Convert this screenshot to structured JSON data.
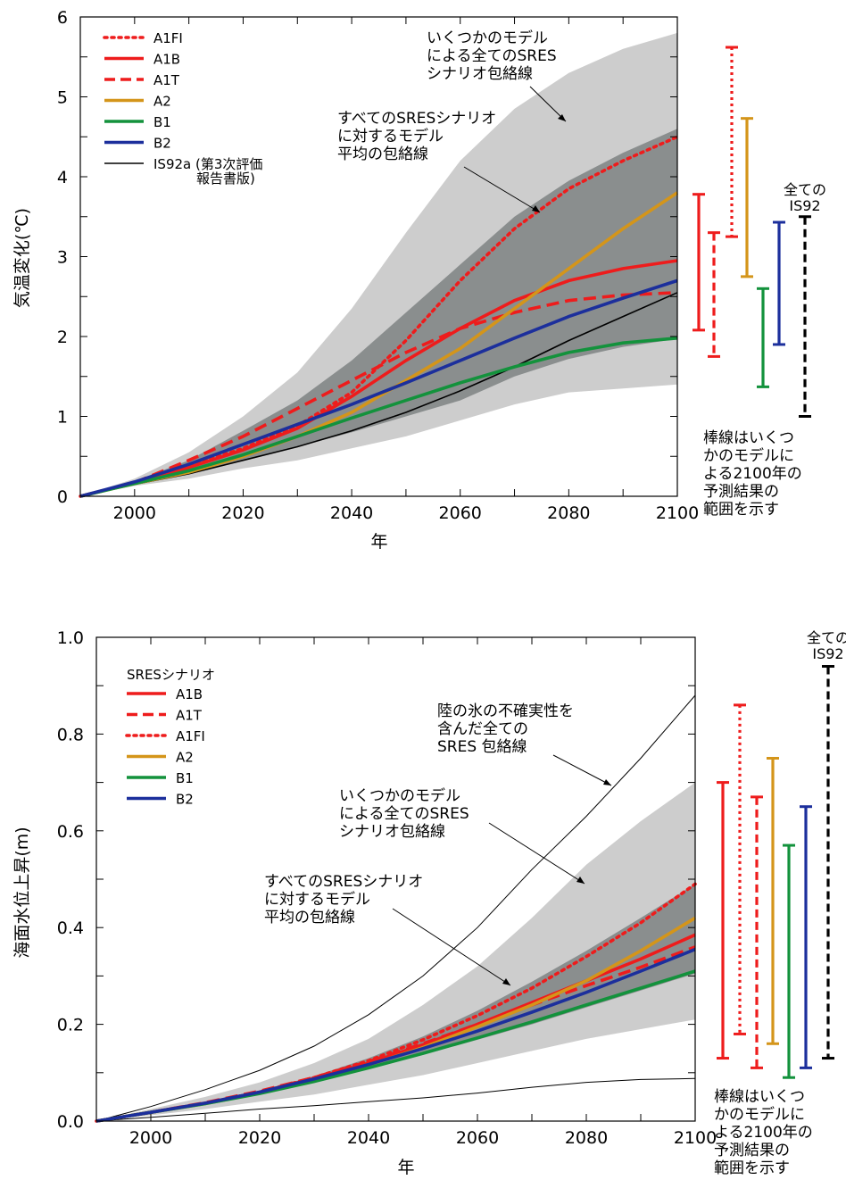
{
  "chart_data": [
    {
      "type": "line",
      "xlabel": "年",
      "ylabel": "気温変化(℃)",
      "xlim": [
        1990,
        2100
      ],
      "ylim": [
        0,
        6
      ],
      "x_ticks": [
        "2000",
        "2020",
        "2040",
        "2060",
        "2080",
        "2100"
      ],
      "y_ticks": [
        "0",
        "1",
        "2",
        "3",
        "4",
        "5",
        "6"
      ],
      "legend": "top-left",
      "series": [
        {
          "name": "A1FI",
          "style": "dotted",
          "color": "#ee1c1c",
          "x": [
            1990,
            2000,
            2010,
            2020,
            2030,
            2040,
            2050,
            2060,
            2070,
            2080,
            2090,
            2100
          ],
          "y": [
            0,
            0.17,
            0.38,
            0.6,
            0.88,
            1.3,
            1.95,
            2.7,
            3.35,
            3.85,
            4.2,
            4.5
          ]
        },
        {
          "name": "A1B",
          "style": "solid",
          "color": "#ee1c1c",
          "x": [
            1990,
            2000,
            2010,
            2020,
            2030,
            2040,
            2050,
            2060,
            2070,
            2080,
            2090,
            2100
          ],
          "y": [
            0,
            0.17,
            0.36,
            0.58,
            0.85,
            1.25,
            1.7,
            2.1,
            2.45,
            2.7,
            2.85,
            2.95
          ]
        },
        {
          "name": "A1T",
          "style": "dashed",
          "color": "#ee1c1c",
          "x": [
            1990,
            2000,
            2010,
            2020,
            2030,
            2040,
            2050,
            2060,
            2070,
            2080,
            2090,
            2100
          ],
          "y": [
            0,
            0.17,
            0.45,
            0.75,
            1.1,
            1.45,
            1.8,
            2.1,
            2.3,
            2.45,
            2.52,
            2.55
          ]
        },
        {
          "name": "A2",
          "style": "solid",
          "color": "#d4951a",
          "x": [
            1990,
            2000,
            2010,
            2020,
            2030,
            2040,
            2050,
            2060,
            2070,
            2080,
            2090,
            2100
          ],
          "y": [
            0,
            0.16,
            0.3,
            0.5,
            0.75,
            1.05,
            1.45,
            1.85,
            2.35,
            2.85,
            3.35,
            3.8
          ]
        },
        {
          "name": "B1",
          "style": "solid",
          "color": "#13923c",
          "x": [
            1990,
            2000,
            2010,
            2020,
            2030,
            2040,
            2050,
            2060,
            2070,
            2080,
            2090,
            2100
          ],
          "y": [
            0,
            0.16,
            0.32,
            0.52,
            0.75,
            0.98,
            1.2,
            1.42,
            1.62,
            1.8,
            1.92,
            1.98
          ]
        },
        {
          "name": "B2",
          "style": "solid",
          "color": "#1c2f9c",
          "x": [
            1990,
            2000,
            2010,
            2020,
            2030,
            2040,
            2050,
            2060,
            2070,
            2080,
            2090,
            2100
          ],
          "y": [
            0,
            0.18,
            0.4,
            0.65,
            0.9,
            1.15,
            1.42,
            1.7,
            1.98,
            2.25,
            2.48,
            2.7
          ]
        },
        {
          "name": "IS92a (第3次評価報告書版)",
          "style": "thin",
          "color": "#000000",
          "x": [
            1990,
            2000,
            2010,
            2020,
            2030,
            2040,
            2050,
            2060,
            2070,
            2080,
            2090,
            2100
          ],
          "y": [
            0,
            0.15,
            0.28,
            0.45,
            0.62,
            0.82,
            1.05,
            1.32,
            1.62,
            1.95,
            2.25,
            2.55
          ]
        }
      ],
      "envelopes": [
        {
          "label": "いくつかのモデルによる全てのSRESシナリオ包絡線",
          "color": "#cdcdcd",
          "x": [
            1990,
            2000,
            2010,
            2020,
            2030,
            2040,
            2050,
            2060,
            2070,
            2080,
            2090,
            2100
          ],
          "upper": [
            0,
            0.22,
            0.55,
            1.0,
            1.55,
            2.35,
            3.3,
            4.2,
            4.85,
            5.3,
            5.6,
            5.8
          ],
          "lower": [
            0,
            0.13,
            0.22,
            0.35,
            0.45,
            0.6,
            0.75,
            0.95,
            1.15,
            1.3,
            1.35,
            1.4
          ]
        },
        {
          "label": "すべてのSRESシナリオに対するモデル平均の包絡線",
          "color": "#8a8e8e",
          "x": [
            1990,
            2000,
            2010,
            2020,
            2030,
            2040,
            2050,
            2060,
            2070,
            2080,
            2090,
            2100
          ],
          "upper": [
            0,
            0.19,
            0.45,
            0.82,
            1.2,
            1.7,
            2.3,
            2.9,
            3.5,
            3.95,
            4.3,
            4.6
          ],
          "lower": [
            0,
            0.15,
            0.28,
            0.45,
            0.62,
            0.8,
            1.0,
            1.2,
            1.5,
            1.72,
            1.87,
            1.97
          ]
        }
      ],
      "bars": [
        {
          "name": "A1B",
          "style": "solid",
          "color": "#ee1c1c",
          "low": 2.08,
          "high": 3.78
        },
        {
          "name": "A1T",
          "style": "dashed",
          "color": "#ee1c1c",
          "low": 1.75,
          "high": 3.3
        },
        {
          "name": "A1FI",
          "style": "dotted",
          "color": "#ee1c1c",
          "low": 3.25,
          "high": 5.62
        },
        {
          "name": "A2",
          "style": "solid",
          "color": "#d4951a",
          "low": 2.75,
          "high": 4.73
        },
        {
          "name": "B1",
          "style": "solid",
          "color": "#13923c",
          "low": 1.37,
          "high": 2.6
        },
        {
          "name": "B2",
          "style": "solid",
          "color": "#1c2f9c",
          "low": 1.9,
          "high": 3.43
        },
        {
          "name": "全てのIS92",
          "style": "dashed",
          "color": "#000000",
          "low": 1.0,
          "high": 3.5
        }
      ],
      "annotations": {
        "envelope_all_lines": [
          "いくつかのモデル",
          "による全てのSRES",
          "シナリオ包絡線"
        ],
        "envelope_mean_lines": [
          "すべてのSRESシナリオ",
          "に対するモデル",
          "平均の包絡線"
        ],
        "all_is92_lines": [
          "全ての",
          "IS92"
        ],
        "bar_note_lines": [
          "棒線はいくつ",
          "かのモデルに",
          "よる2100年の",
          "予測結果の",
          "範囲を示す"
        ],
        "is92a_note": "報告書版)"
      }
    },
    {
      "type": "line",
      "xlabel": "年",
      "ylabel": "海面水位上昇(m)",
      "xlim": [
        1990,
        2100
      ],
      "ylim": [
        0,
        1.0
      ],
      "x_ticks": [
        "2000",
        "2020",
        "2040",
        "2060",
        "2080",
        "2100"
      ],
      "y_ticks": [
        "0.0",
        "0.2",
        "0.4",
        "0.6",
        "0.8",
        "1.0"
      ],
      "legend_title": "SRESシナリオ",
      "legend": "top-left",
      "series": [
        {
          "name": "A1B",
          "style": "solid",
          "color": "#ee1c1c",
          "x": [
            1990,
            2000,
            2010,
            2020,
            2030,
            2040,
            2050,
            2060,
            2070,
            2080,
            2090,
            2100
          ],
          "y": [
            0,
            0.018,
            0.037,
            0.06,
            0.088,
            0.12,
            0.158,
            0.2,
            0.245,
            0.29,
            0.335,
            0.385
          ]
        },
        {
          "name": "A1T",
          "style": "dashed",
          "color": "#ee1c1c",
          "x": [
            1990,
            2000,
            2010,
            2020,
            2030,
            2040,
            2050,
            2060,
            2070,
            2080,
            2090,
            2100
          ],
          "y": [
            0,
            0.018,
            0.038,
            0.062,
            0.09,
            0.123,
            0.16,
            0.2,
            0.24,
            0.28,
            0.318,
            0.36
          ]
        },
        {
          "name": "A1FI",
          "style": "dotted",
          "color": "#ee1c1c",
          "x": [
            1990,
            2000,
            2010,
            2020,
            2030,
            2040,
            2050,
            2060,
            2070,
            2080,
            2090,
            2100
          ],
          "y": [
            0,
            0.018,
            0.037,
            0.06,
            0.09,
            0.125,
            0.168,
            0.218,
            0.275,
            0.34,
            0.41,
            0.49
          ]
        },
        {
          "name": "A2",
          "style": "solid",
          "color": "#d4951a",
          "x": [
            1990,
            2000,
            2010,
            2020,
            2030,
            2040,
            2050,
            2060,
            2070,
            2080,
            2090,
            2100
          ],
          "y": [
            0,
            0.018,
            0.036,
            0.058,
            0.085,
            0.116,
            0.152,
            0.195,
            0.24,
            0.29,
            0.352,
            0.42
          ]
        },
        {
          "name": "B1",
          "style": "solid",
          "color": "#13923c",
          "x": [
            1990,
            2000,
            2010,
            2020,
            2030,
            2040,
            2050,
            2060,
            2070,
            2080,
            2090,
            2100
          ],
          "y": [
            0,
            0.018,
            0.036,
            0.057,
            0.082,
            0.11,
            0.14,
            0.172,
            0.205,
            0.24,
            0.275,
            0.31
          ]
        },
        {
          "name": "B2",
          "style": "solid",
          "color": "#1c2f9c",
          "x": [
            1990,
            2000,
            2010,
            2020,
            2030,
            2040,
            2050,
            2060,
            2070,
            2080,
            2090,
            2100
          ],
          "y": [
            0,
            0.018,
            0.037,
            0.06,
            0.087,
            0.117,
            0.15,
            0.186,
            0.225,
            0.266,
            0.31,
            0.355
          ]
        }
      ],
      "envelopes": [
        {
          "label": "いくつかのモデルによる全てのSRESシナリオ包絡線",
          "color": "#cdcdcd",
          "x": [
            1990,
            2000,
            2010,
            2020,
            2030,
            2040,
            2050,
            2060,
            2070,
            2080,
            2090,
            2100
          ],
          "upper": [
            0,
            0.025,
            0.05,
            0.08,
            0.12,
            0.17,
            0.24,
            0.32,
            0.42,
            0.53,
            0.62,
            0.7
          ],
          "lower": [
            0,
            0.012,
            0.025,
            0.04,
            0.055,
            0.075,
            0.095,
            0.12,
            0.145,
            0.17,
            0.19,
            0.21
          ]
        },
        {
          "label": "すべてのSRESシナリオに対するモデル平均の包絡線",
          "color": "#8a8e8e",
          "x": [
            1990,
            2000,
            2010,
            2020,
            2030,
            2040,
            2050,
            2060,
            2070,
            2080,
            2090,
            2100
          ],
          "upper": [
            0,
            0.019,
            0.039,
            0.063,
            0.093,
            0.13,
            0.175,
            0.228,
            0.288,
            0.352,
            0.42,
            0.49
          ],
          "lower": [
            0,
            0.017,
            0.035,
            0.056,
            0.08,
            0.107,
            0.137,
            0.168,
            0.2,
            0.235,
            0.27,
            0.305
          ]
        }
      ],
      "outer_lines": {
        "label_lines": [
          "陸の氷の不確実性を",
          "含んだ全ての",
          "SRES 包絡線"
        ],
        "x": [
          1990,
          2000,
          2010,
          2020,
          2030,
          2040,
          2050,
          2060,
          2070,
          2080,
          2090,
          2100
        ],
        "upper": [
          0,
          0.03,
          0.065,
          0.105,
          0.155,
          0.22,
          0.3,
          0.4,
          0.52,
          0.63,
          0.75,
          0.88
        ],
        "lower": [
          0,
          0.008,
          0.016,
          0.025,
          0.032,
          0.04,
          0.048,
          0.058,
          0.07,
          0.08,
          0.086,
          0.088
        ]
      },
      "bars": [
        {
          "name": "A1B",
          "style": "solid",
          "color": "#ee1c1c",
          "low": 0.13,
          "high": 0.7
        },
        {
          "name": "A1FI",
          "style": "dotted",
          "color": "#ee1c1c",
          "low": 0.18,
          "high": 0.86
        },
        {
          "name": "A1T",
          "style": "dashed",
          "color": "#ee1c1c",
          "low": 0.11,
          "high": 0.67
        },
        {
          "name": "A2",
          "style": "solid",
          "color": "#d4951a",
          "low": 0.16,
          "high": 0.75
        },
        {
          "name": "B1",
          "style": "solid",
          "color": "#13923c",
          "low": 0.09,
          "high": 0.57
        },
        {
          "name": "B2",
          "style": "solid",
          "color": "#1c2f9c",
          "low": 0.11,
          "high": 0.65
        },
        {
          "name": "全てのIS92",
          "style": "dashed",
          "color": "#000000",
          "low": 0.13,
          "high": 0.94
        }
      ],
      "annotations": {
        "envelope_all_lines": [
          "いくつかのモデル",
          "による全てのSRES",
          "シナリオ包絡線"
        ],
        "envelope_mean_lines": [
          "すべてのSRESシナリオ",
          "に対するモデル",
          "平均の包絡線"
        ],
        "all_is92_lines": [
          "全ての",
          "IS92"
        ],
        "bar_note_lines": [
          "棒線はいくつ",
          "かのモデルに",
          "よる2100年の",
          "予測結果の",
          "範囲を示す"
        ]
      }
    }
  ]
}
